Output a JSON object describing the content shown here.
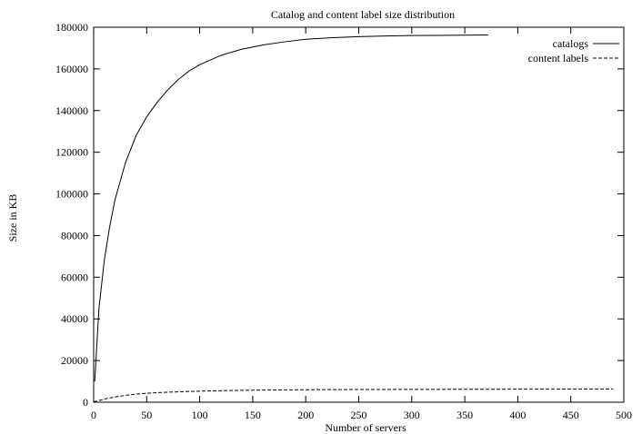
{
  "chart_data": {
    "type": "line",
    "title": "Catalog and content label size distribution",
    "xlabel": "Number of servers",
    "ylabel": "Size in KB",
    "xlim": [
      0,
      500
    ],
    "ylim": [
      0,
      180000
    ],
    "xticks": [
      0,
      50,
      100,
      150,
      200,
      250,
      300,
      350,
      400,
      450,
      500
    ],
    "yticks": [
      0,
      20000,
      40000,
      60000,
      80000,
      100000,
      120000,
      140000,
      160000,
      180000
    ],
    "grid": false,
    "legend_position": "top-right",
    "series": [
      {
        "name": "catalogs",
        "color": "#000000",
        "dash": "solid",
        "x": [
          1,
          5,
          10,
          15,
          20,
          30,
          40,
          50,
          60,
          70,
          80,
          90,
          100,
          120,
          140,
          160,
          180,
          200,
          225,
          250,
          275,
          300,
          325,
          350,
          372
        ],
        "y": [
          10000,
          45000,
          68000,
          84000,
          97000,
          115000,
          128000,
          137000,
          144000,
          150000,
          155000,
          159000,
          162000,
          166500,
          169500,
          171500,
          173000,
          174200,
          175000,
          175500,
          175800,
          176000,
          176100,
          176200,
          176300
        ]
      },
      {
        "name": "content labels",
        "color": "#000000",
        "dash": "dashed",
        "x": [
          0,
          5,
          10,
          20,
          30,
          40,
          50,
          60,
          80,
          100,
          125,
          150,
          200,
          250,
          300,
          350,
          400,
          450,
          490
        ],
        "y": [
          200,
          800,
          1500,
          2500,
          3300,
          3900,
          4300,
          4600,
          5000,
          5300,
          5600,
          5800,
          6000,
          6100,
          6150,
          6200,
          6250,
          6300,
          6350
        ]
      }
    ]
  }
}
